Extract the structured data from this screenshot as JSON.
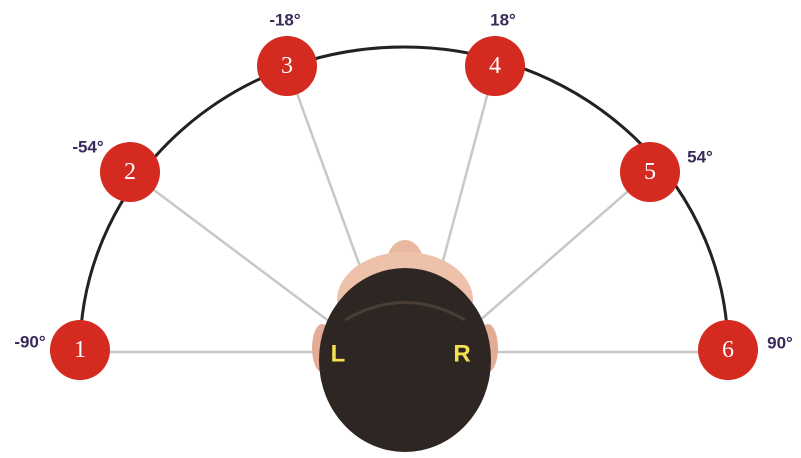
{
  "nodes": [
    {
      "label": "1",
      "angle": "-90°"
    },
    {
      "label": "2",
      "angle": "-54°"
    },
    {
      "label": "3",
      "angle": "-18°"
    },
    {
      "label": "4",
      "angle": "18°"
    },
    {
      "label": "5",
      "angle": "54°"
    },
    {
      "label": "6",
      "angle": "90°"
    }
  ],
  "head": {
    "left": "L",
    "right": "R"
  }
}
